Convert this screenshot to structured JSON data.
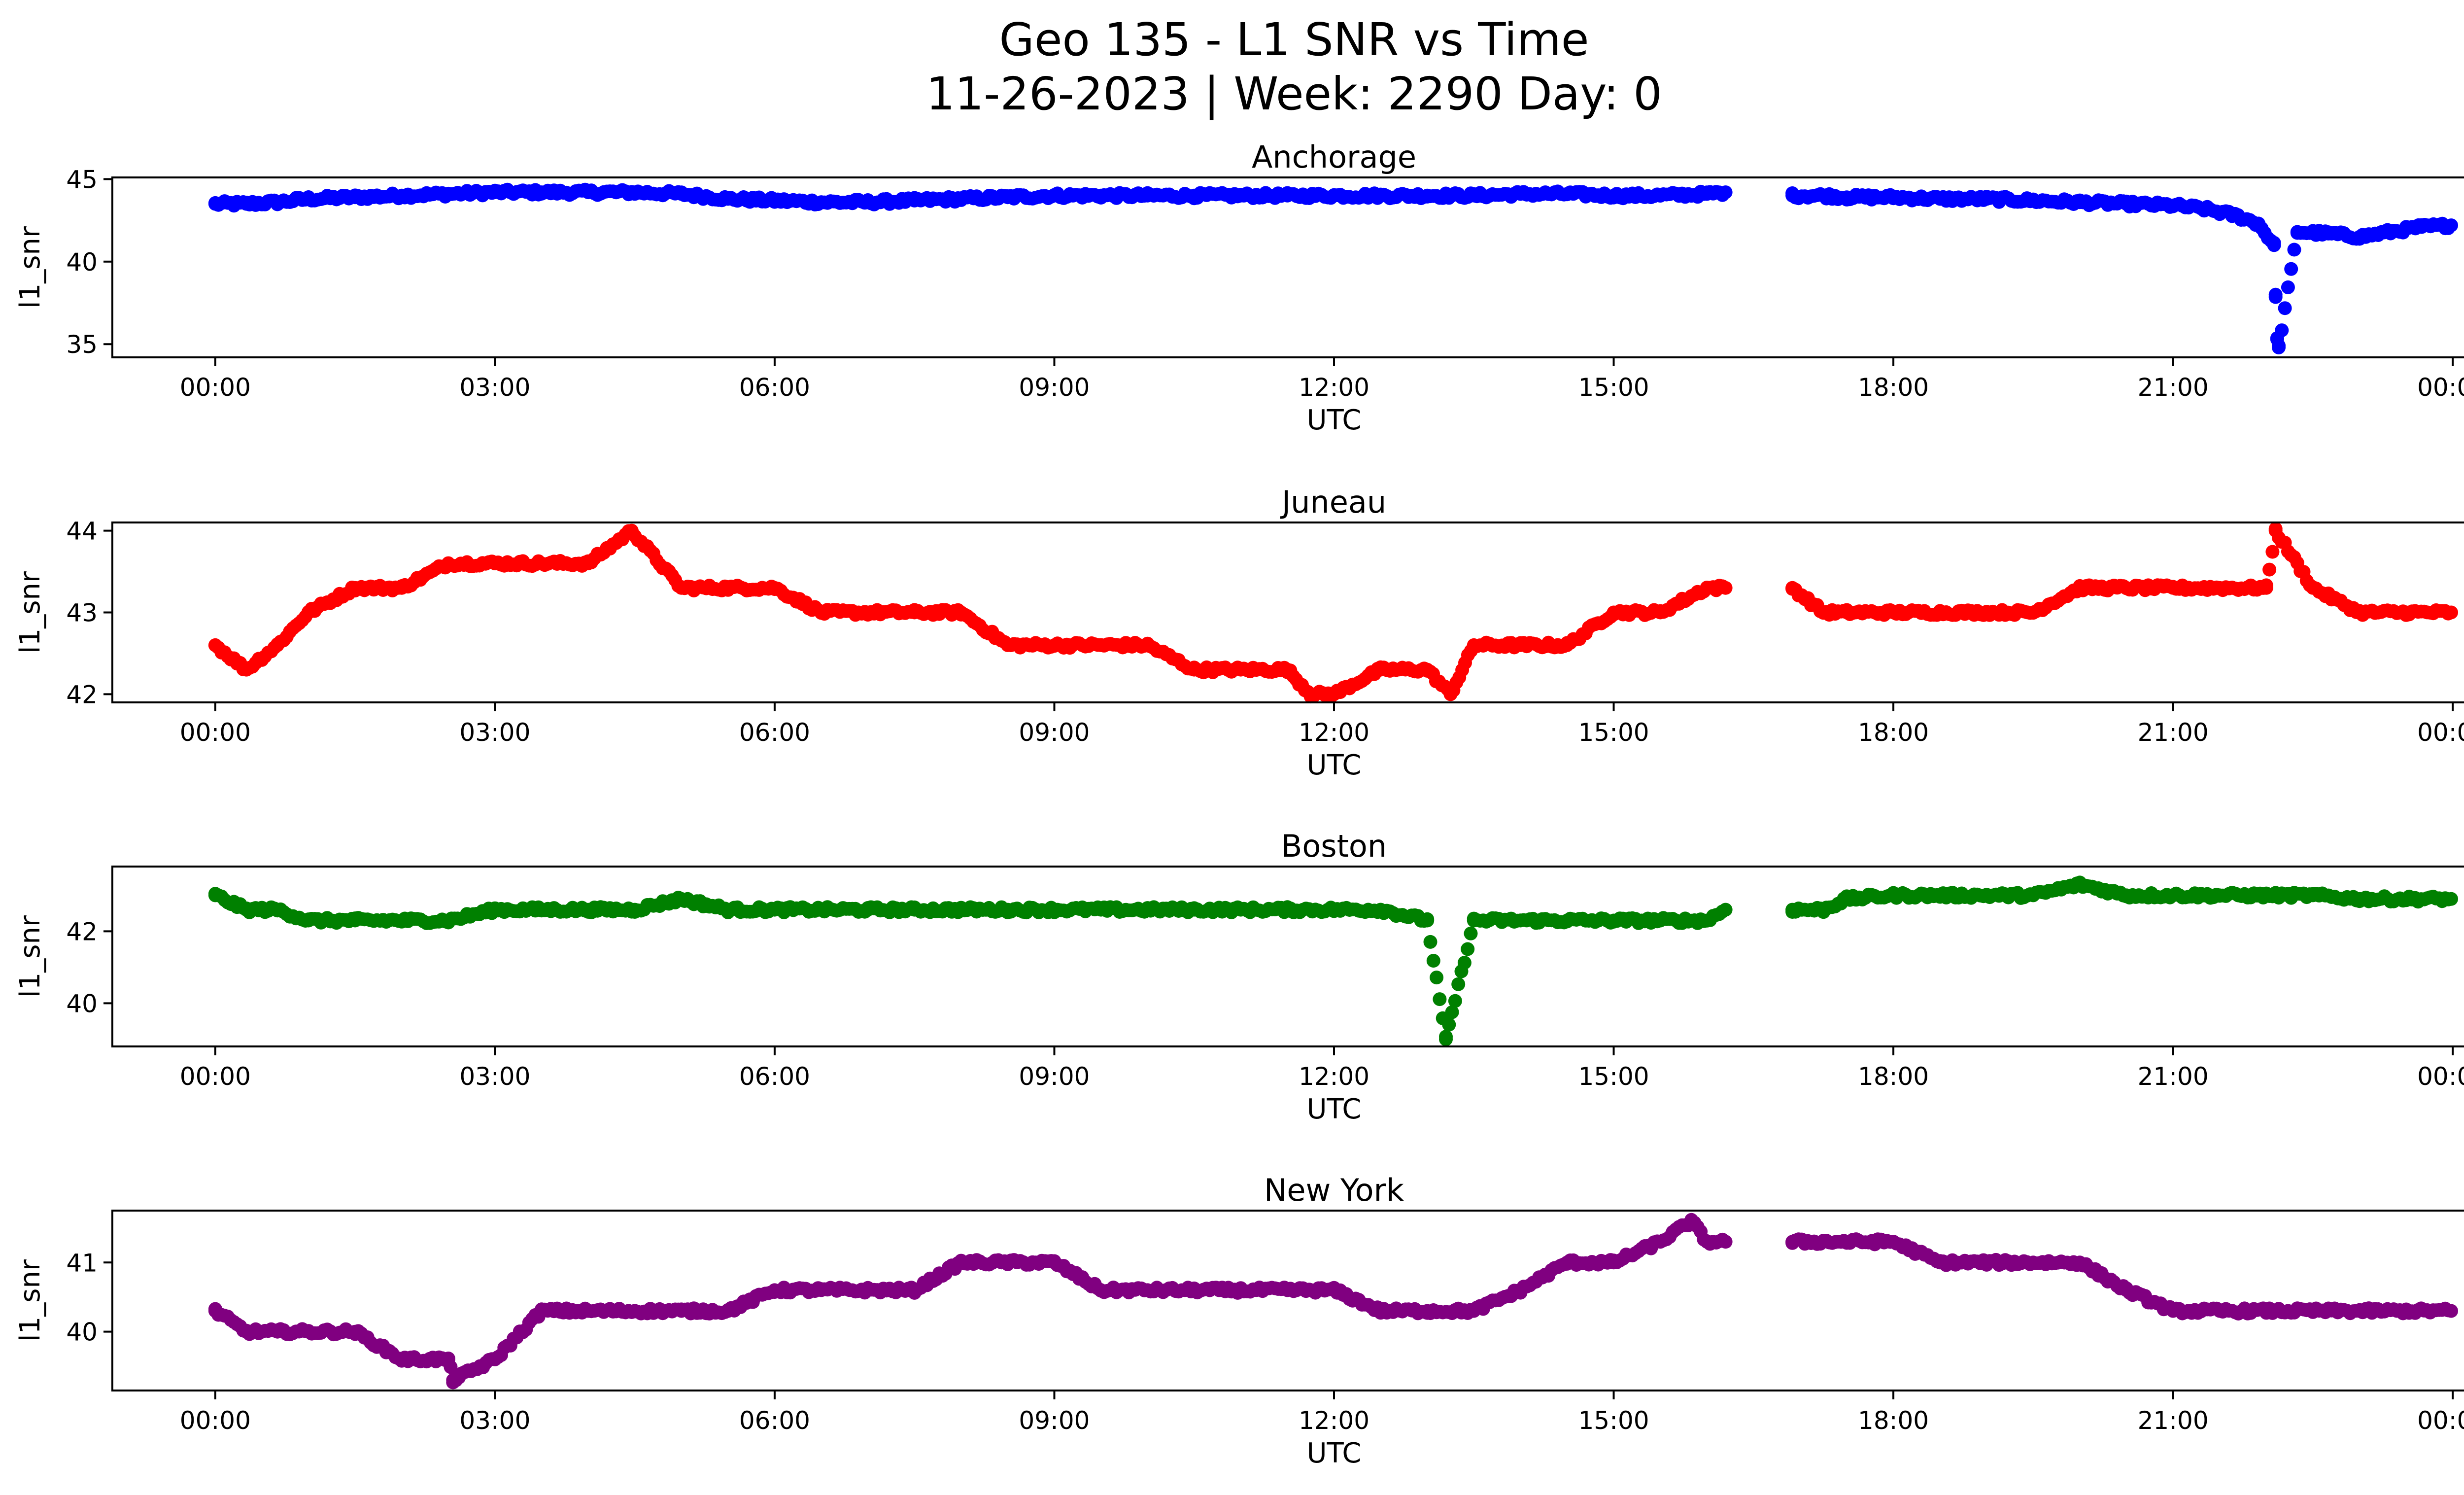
{
  "figure": {
    "title_line1": "Geo 135 - L1 SNR vs Time",
    "title_line2": "11-26-2023 | Week: 2290 Day: 0"
  },
  "chart_data": [
    {
      "type": "scatter",
      "title": "Anchorage",
      "xlabel": "UTC",
      "ylabel": "l1_snr",
      "color": "#0000ff",
      "xlim": [
        "00:00",
        "24:00"
      ],
      "ylim": [
        34.2,
        45.1
      ],
      "x_tick_labels": [
        "00:00",
        "03:00",
        "06:00",
        "09:00",
        "12:00",
        "15:00",
        "18:00",
        "21:00",
        "00:00"
      ],
      "y_ticks": [
        35,
        40,
        45
      ],
      "data_gaps": [
        [
          "16:12",
          "16:55"
        ]
      ],
      "series": [
        {
          "x": [
            "00:00",
            "00:20",
            "00:40",
            "01:00",
            "01:30",
            "02:00",
            "02:30",
            "03:00",
            "03:30",
            "04:00",
            "04:30",
            "05:00",
            "05:30",
            "06:00",
            "06:30",
            "07:00",
            "07:30",
            "08:00",
            "08:30",
            "09:00",
            "09:30",
            "10:00",
            "10:30",
            "11:00",
            "11:30",
            "12:00",
            "12:30",
            "13:00",
            "13:30",
            "14:00",
            "14:30",
            "15:00",
            "15:30",
            "16:00",
            "16:12",
            "16:55",
            "17:15",
            "17:30",
            "18:00",
            "18:30",
            "19:00",
            "19:30",
            "20:00",
            "20:30",
            "21:00",
            "21:20",
            "21:40",
            "21:55",
            "22:05",
            "22:06",
            "22:07",
            "22:08",
            "22:20",
            "22:40",
            "23:00",
            "23:20",
            "23:40",
            "23:59"
          ],
          "y": [
            43.5,
            43.5,
            43.6,
            43.8,
            43.9,
            44.0,
            44.1,
            44.2,
            44.2,
            44.2,
            44.2,
            44.1,
            43.8,
            43.7,
            43.6,
            43.6,
            43.7,
            43.8,
            43.9,
            44.0,
            44.0,
            44.0,
            44.0,
            44.0,
            44.0,
            44.0,
            44.0,
            44.0,
            44.0,
            44.1,
            44.1,
            44.0,
            44.0,
            44.1,
            44.2,
            44.0,
            44.0,
            43.9,
            43.9,
            43.8,
            43.8,
            43.7,
            43.6,
            43.5,
            43.4,
            43.2,
            42.8,
            42.3,
            41.0,
            38.0,
            35.3,
            34.8,
            41.8,
            41.7,
            41.5,
            41.8,
            42.1,
            42.2
          ]
        }
      ]
    },
    {
      "type": "scatter",
      "title": "Juneau",
      "xlabel": "UTC",
      "ylabel": "l1_snr",
      "color": "#ff0000",
      "xlim": [
        "00:00",
        "24:00"
      ],
      "ylim": [
        41.9,
        44.1
      ],
      "x_tick_labels": [
        "00:00",
        "03:00",
        "06:00",
        "09:00",
        "12:00",
        "15:00",
        "18:00",
        "21:00",
        "00:00"
      ],
      "y_ticks": [
        42,
        43,
        44
      ],
      "data_gaps": [
        [
          "16:12",
          "16:55"
        ]
      ],
      "series": [
        {
          "x": [
            "00:00",
            "00:20",
            "00:40",
            "01:00",
            "01:30",
            "02:00",
            "02:30",
            "03:00",
            "03:30",
            "04:00",
            "04:28",
            "05:00",
            "05:30",
            "06:00",
            "06:30",
            "07:00",
            "07:30",
            "08:00",
            "08:30",
            "09:00",
            "09:30",
            "10:00",
            "10:30",
            "11:00",
            "11:30",
            "11:45",
            "12:00",
            "12:30",
            "13:00",
            "13:15",
            "13:30",
            "14:00",
            "14:30",
            "15:00",
            "15:30",
            "16:00",
            "16:12",
            "16:55",
            "17:15",
            "17:30",
            "18:00",
            "18:30",
            "19:00",
            "19:30",
            "20:00",
            "20:30",
            "21:00",
            "21:30",
            "22:00",
            "22:06",
            "22:30",
            "23:00",
            "23:30",
            "23:59"
          ],
          "y": [
            42.6,
            42.3,
            42.6,
            43.0,
            43.3,
            43.3,
            43.6,
            43.6,
            43.6,
            43.6,
            44.0,
            43.3,
            43.3,
            43.3,
            43.0,
            43.0,
            43.0,
            43.0,
            42.6,
            42.6,
            42.6,
            42.6,
            42.3,
            42.3,
            42.3,
            42.0,
            42.0,
            42.3,
            42.3,
            42.0,
            42.6,
            42.6,
            42.6,
            43.0,
            43.0,
            43.3,
            43.3,
            43.3,
            43.0,
            43.0,
            43.0,
            43.0,
            43.0,
            43.0,
            43.3,
            43.3,
            43.3,
            43.3,
            43.3,
            44.0,
            43.3,
            43.0,
            43.0,
            43.0
          ]
        }
      ]
    },
    {
      "type": "scatter",
      "title": "Boston",
      "xlabel": "UTC",
      "ylabel": "l1_snr",
      "color": "#008000",
      "xlim": [
        "00:00",
        "24:00"
      ],
      "ylim": [
        38.8,
        43.8
      ],
      "x_tick_labels": [
        "00:00",
        "03:00",
        "06:00",
        "09:00",
        "12:00",
        "15:00",
        "18:00",
        "21:00",
        "00:00"
      ],
      "y_ticks": [
        40,
        42
      ],
      "data_gaps": [
        [
          "16:12",
          "16:55"
        ]
      ],
      "series": [
        {
          "x": [
            "00:00",
            "00:20",
            "00:40",
            "01:00",
            "01:30",
            "02:00",
            "02:30",
            "03:00",
            "03:30",
            "04:00",
            "04:30",
            "05:00",
            "05:30",
            "06:00",
            "06:30",
            "07:00",
            "07:30",
            "08:00",
            "08:30",
            "09:00",
            "09:30",
            "10:00",
            "10:30",
            "11:00",
            "11:30",
            "12:00",
            "12:30",
            "13:00",
            "13:12",
            "13:30",
            "14:00",
            "14:30",
            "15:00",
            "15:30",
            "16:00",
            "16:12",
            "16:55",
            "17:15",
            "17:30",
            "18:00",
            "18:30",
            "19:00",
            "19:30",
            "20:00",
            "20:30",
            "21:00",
            "21:30",
            "22:00",
            "22:30",
            "23:00",
            "23:30",
            "23:59"
          ],
          "y": [
            43.0,
            42.6,
            42.6,
            42.3,
            42.3,
            42.3,
            42.3,
            42.6,
            42.6,
            42.6,
            42.6,
            42.9,
            42.6,
            42.6,
            42.6,
            42.6,
            42.6,
            42.6,
            42.6,
            42.6,
            42.6,
            42.6,
            42.6,
            42.6,
            42.6,
            42.6,
            42.6,
            42.3,
            39.0,
            42.3,
            42.3,
            42.3,
            42.3,
            42.3,
            42.3,
            42.6,
            42.6,
            42.6,
            42.9,
            43.0,
            43.0,
            43.0,
            43.0,
            43.3,
            43.0,
            43.0,
            43.0,
            43.0,
            43.0,
            42.9,
            42.9,
            42.9
          ]
        }
      ]
    },
    {
      "type": "scatter",
      "title": "New York",
      "xlabel": "UTC",
      "ylabel": "l1_snr",
      "color": "#800080",
      "xlim": [
        "00:00",
        "24:00"
      ],
      "ylim": [
        39.15,
        41.75
      ],
      "x_tick_labels": [
        "00:00",
        "03:00",
        "06:00",
        "09:00",
        "12:00",
        "15:00",
        "18:00",
        "21:00",
        "00:00"
      ],
      "y_ticks": [
        40,
        41
      ],
      "data_gaps": [
        [
          "16:12",
          "16:55"
        ]
      ],
      "series": [
        {
          "x": [
            "00:00",
            "00:20",
            "00:40",
            "01:00",
            "01:30",
            "02:00",
            "02:30",
            "02:33",
            "03:00",
            "03:30",
            "04:00",
            "04:30",
            "05:00",
            "05:30",
            "06:00",
            "06:30",
            "07:00",
            "07:30",
            "08:00",
            "08:30",
            "09:00",
            "09:30",
            "10:00",
            "10:30",
            "11:00",
            "11:30",
            "12:00",
            "12:30",
            "13:00",
            "13:30",
            "14:00",
            "14:30",
            "15:00",
            "15:30",
            "15:50",
            "16:00",
            "16:12",
            "16:55",
            "17:15",
            "17:30",
            "18:00",
            "18:30",
            "19:00",
            "19:30",
            "20:00",
            "20:30",
            "21:00",
            "21:30",
            "22:00",
            "22:30",
            "23:00",
            "23:30",
            "23:59"
          ],
          "y": [
            40.3,
            40.0,
            40.0,
            40.0,
            40.0,
            39.6,
            39.6,
            39.3,
            39.6,
            40.3,
            40.3,
            40.3,
            40.3,
            40.3,
            40.6,
            40.6,
            40.6,
            40.6,
            41.0,
            41.0,
            41.0,
            40.6,
            40.6,
            40.6,
            40.6,
            40.6,
            40.6,
            40.3,
            40.3,
            40.3,
            40.6,
            41.0,
            41.0,
            41.3,
            41.6,
            41.3,
            41.3,
            41.3,
            41.3,
            41.3,
            41.3,
            41.0,
            41.0,
            41.0,
            41.0,
            40.6,
            40.3,
            40.3,
            40.3,
            40.3,
            40.3,
            40.3,
            40.3
          ]
        }
      ]
    }
  ]
}
